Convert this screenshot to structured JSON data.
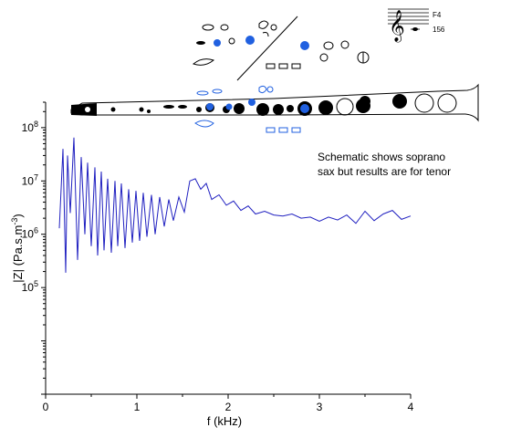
{
  "chart_data": {
    "type": "line",
    "title": "",
    "xlabel": "f (kHz)",
    "ylabel_prefix": "|Z| (Pa.s.m",
    "ylabel_sup": "-3",
    "ylabel_suffix": ")",
    "xlim": [
      0,
      4
    ],
    "ylim": [
      1000,
      300000000
    ],
    "yscale": "log",
    "x_ticks": [
      "0",
      "1",
      "2",
      "3",
      "4"
    ],
    "x_tick_values": [
      0,
      1,
      2,
      3,
      4
    ],
    "y_tick_values": [
      100000,
      1000000,
      10000000,
      100000000
    ],
    "y_ticks": [
      {
        "base": "10",
        "exp": "5"
      },
      {
        "base": "10",
        "exp": "6"
      },
      {
        "base": "10",
        "exp": "7"
      },
      {
        "base": "10",
        "exp": "8"
      }
    ],
    "grid": false,
    "series": [
      {
        "color": "#2020c0",
        "x": [
          0.15,
          0.19,
          0.22,
          0.24,
          0.27,
          0.31,
          0.35,
          0.39,
          0.43,
          0.46,
          0.5,
          0.54,
          0.57,
          0.61,
          0.64,
          0.68,
          0.72,
          0.76,
          0.79,
          0.83,
          0.87,
          0.91,
          0.95,
          0.99,
          1.03,
          1.07,
          1.11,
          1.16,
          1.2,
          1.25,
          1.3,
          1.35,
          1.4,
          1.46,
          1.52,
          1.58,
          1.64,
          1.7,
          1.76,
          1.82,
          1.9,
          1.98,
          2.06,
          2.14,
          2.22,
          2.3,
          2.4,
          2.5,
          2.6,
          2.7,
          2.8,
          2.9,
          3.0,
          3.1,
          3.2,
          3.3,
          3.4,
          3.5,
          3.6,
          3.7,
          3.8,
          3.9,
          4.0
        ],
        "y": [
          1300000,
          40000000,
          190000,
          30000000,
          2500000,
          65000000,
          330000,
          28000000,
          1000000,
          22000000,
          600000,
          18000000,
          400000,
          15000000,
          500000,
          11000000,
          450000,
          10000000,
          600000,
          9000000,
          550000,
          7000000,
          700000,
          6500000,
          750000,
          6000000,
          900000,
          5500000,
          1000000,
          5000000,
          1400000,
          4500000,
          1800000,
          5000000,
          2600000,
          10000000,
          11000000,
          7000000,
          9000000,
          4500000,
          5500000,
          3500000,
          4200000,
          2800000,
          3400000,
          2400000,
          2700000,
          2300000,
          2200000,
          2400000,
          2000000,
          2100000,
          1750000,
          2100000,
          1850000,
          2300000,
          1600000,
          2700000,
          1800000,
          2400000,
          2800000,
          1900000,
          2200000
        ]
      }
    ]
  },
  "annotation": {
    "line1": "Schematic shows soprano",
    "line2": "sax but results are for tenor"
  },
  "note_label": {
    "note": "F4",
    "freq": "156"
  },
  "colors": {
    "curve": "#2020c0",
    "key_pressed": "#2060e0",
    "key_closed": "#000000"
  }
}
